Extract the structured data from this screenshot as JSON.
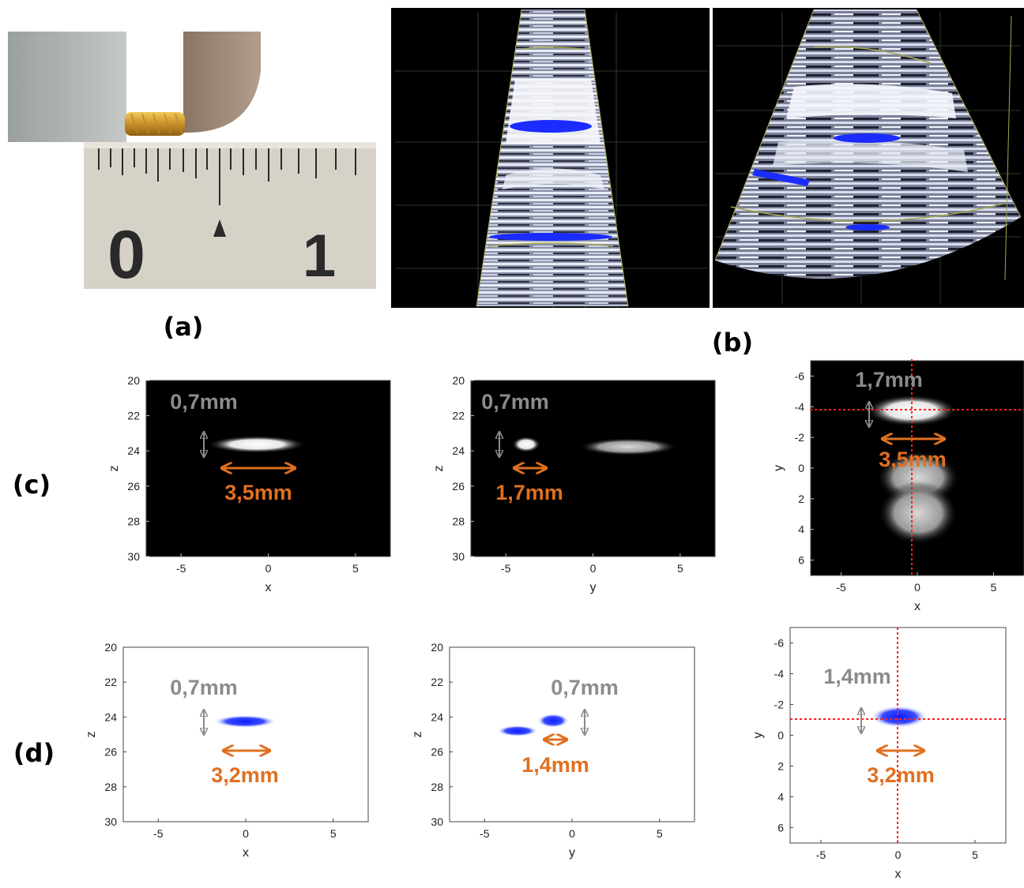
{
  "panel_labels": {
    "a": "(a)",
    "b": "(b)",
    "c": "(c)",
    "d": "(d)"
  },
  "ruler": {
    "digit_0": "0",
    "digit_1": "1"
  },
  "colors": {
    "gray_annot": "#8c8c8c",
    "orange_annot": "#e07020",
    "blue_marker": "#1a2cff",
    "red_crosshair": "#ff2020"
  },
  "annotations": {
    "c_xz_vertical": "0,7mm",
    "c_xz_horizontal": "3,5mm",
    "c_yz_vertical": "0,7mm",
    "c_yz_horizontal": "1,7mm",
    "c_xy_vertical": "1,7mm",
    "c_xy_horizontal": "3,5mm",
    "d_xz_vertical": "0,7mm",
    "d_xz_horizontal": "3,2mm",
    "d_yz_vertical": "0,7mm",
    "d_yz_horizontal": "1,4mm",
    "d_xy_vertical": "1,4mm",
    "d_xy_horizontal": "3,2mm"
  },
  "chart_data": [
    {
      "id": "c-xz",
      "type": "heatmap",
      "xlabel": "x",
      "ylabel": "z",
      "xlim": [
        -7,
        7
      ],
      "ylim": [
        20,
        30
      ],
      "y_reversed": true,
      "xticks": [
        "-5",
        "0",
        "5"
      ],
      "yticks": [
        "20",
        "22",
        "24",
        "26",
        "28",
        "30"
      ],
      "background": "black"
    },
    {
      "id": "c-yz",
      "type": "heatmap",
      "xlabel": "y",
      "ylabel": "z",
      "xlim": [
        -7,
        7
      ],
      "ylim": [
        20,
        30
      ],
      "y_reversed": true,
      "xticks": [
        "-5",
        "0",
        "5"
      ],
      "yticks": [
        "20",
        "22",
        "24",
        "26",
        "28",
        "30"
      ],
      "background": "black"
    },
    {
      "id": "c-xy",
      "type": "heatmap",
      "xlabel": "x",
      "ylabel": "y",
      "xlim": [
        -7,
        7
      ],
      "ylim": [
        -7,
        7
      ],
      "y_reversed": true,
      "xticks": [
        "-5",
        "0",
        "5"
      ],
      "yticks": [
        "-6",
        "-4",
        "-2",
        "0",
        "2",
        "4",
        "6"
      ],
      "background": "black",
      "crosshair": {
        "x": 0,
        "y": -3.9
      }
    },
    {
      "id": "d-xz",
      "type": "heatmap",
      "xlabel": "x",
      "ylabel": "z",
      "xlim": [
        -7,
        7
      ],
      "ylim": [
        20,
        30
      ],
      "y_reversed": true,
      "xticks": [
        "-5",
        "0",
        "5"
      ],
      "yticks": [
        "20",
        "22",
        "24",
        "26",
        "28",
        "30"
      ],
      "background": "white"
    },
    {
      "id": "d-yz",
      "type": "heatmap",
      "xlabel": "y",
      "ylabel": "z",
      "xlim": [
        -7,
        7
      ],
      "ylim": [
        20,
        30
      ],
      "y_reversed": true,
      "xticks": [
        "-5",
        "0",
        "5"
      ],
      "yticks": [
        "20",
        "22",
        "24",
        "26",
        "28",
        "30"
      ],
      "background": "white"
    },
    {
      "id": "d-xy",
      "type": "heatmap",
      "xlabel": "x",
      "ylabel": "y",
      "xlim": [
        -7,
        7
      ],
      "ylim": [
        -7,
        7
      ],
      "y_reversed": true,
      "xticks": [
        "-5",
        "0",
        "5"
      ],
      "yticks": [
        "-6",
        "-4",
        "-2",
        "0",
        "2",
        "4",
        "6"
      ],
      "background": "white",
      "crosshair": {
        "x": 0,
        "y": -0.9
      }
    }
  ]
}
